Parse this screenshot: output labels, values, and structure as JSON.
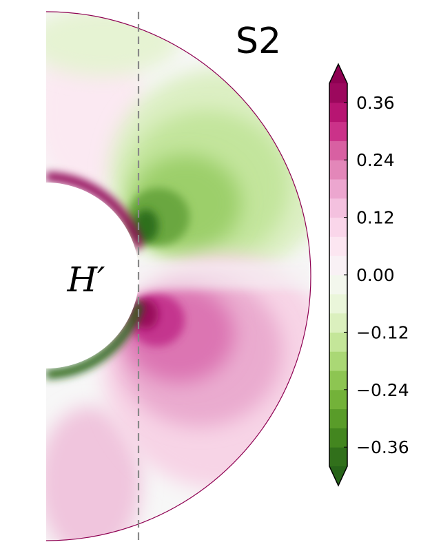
{
  "chart_data": {
    "type": "heatmap",
    "title": "S2",
    "quantity_label": "H′",
    "geometry": "meridional half-annulus (spherical shell cross-section)",
    "divider": "dashed vertical line",
    "colormap": "PiYG (green negative, magenta positive)",
    "colorbar": {
      "orientation": "vertical",
      "extend": "both",
      "vmin": -0.4,
      "vmax": 0.4,
      "levels": 20,
      "ticks": [
        0.36,
        0.24,
        0.12,
        0.0,
        -0.12,
        -0.24,
        -0.36
      ],
      "tick_labels": [
        "0.36",
        "0.24",
        "0.12",
        "0.00",
        "−0.12",
        "−0.24",
        "−0.36"
      ]
    },
    "colors": {
      "positive_max": "#8e0152",
      "negative_max": "#276419",
      "zero": "#f7f7f7",
      "divider": "#888888"
    }
  }
}
